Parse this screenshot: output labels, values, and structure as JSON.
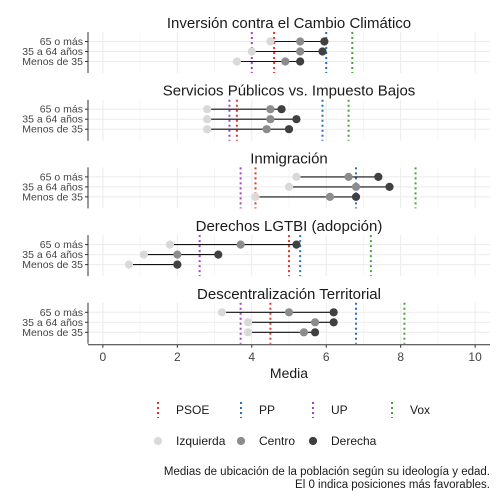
{
  "chart_data": {
    "type": "dot-range",
    "xlabel": "Media",
    "xlim": [
      -0.4,
      10.4
    ],
    "xticks": [
      0,
      2,
      4,
      6,
      8,
      10
    ],
    "grid": true,
    "groups": [
      "65 o más",
      "35 a 64 años",
      "Menos de 35"
    ],
    "ideologies": [
      {
        "name": "Izquierda",
        "color": "#d9d9d9"
      },
      {
        "name": "Centro",
        "color": "#8c8c8c"
      },
      {
        "name": "Derecha",
        "color": "#404040"
      }
    ],
    "parties": [
      {
        "name": "PSOE",
        "color": "#e8352a"
      },
      {
        "name": "PP",
        "color": "#2c6fbd"
      },
      {
        "name": "UP",
        "color": "#a344c9"
      },
      {
        "name": "Vox",
        "color": "#4aa539"
      }
    ],
    "panels": [
      {
        "title": "Inversión contra el Cambio Climático",
        "party_lines": {
          "PSOE": 4.6,
          "PP": 6.0,
          "UP": 4.0,
          "Vox": 6.7
        },
        "rows": [
          {
            "group": "65 o más",
            "Izquierda": 4.5,
            "Centro": 5.3,
            "Derecha": 5.95
          },
          {
            "group": "35 a 64 años",
            "Izquierda": 4.0,
            "Centro": 5.3,
            "Derecha": 5.9
          },
          {
            "group": "Menos de 35",
            "Izquierda": 3.6,
            "Centro": 4.9,
            "Derecha": 5.3
          }
        ]
      },
      {
        "title": "Servicios Públicos vs. Impuesto Bajos",
        "party_lines": {
          "PSOE": 3.6,
          "PP": 5.9,
          "UP": 3.4,
          "Vox": 6.6
        },
        "rows": [
          {
            "group": "65 o más",
            "Izquierda": 2.8,
            "Centro": 4.5,
            "Derecha": 4.8
          },
          {
            "group": "35 a 64 años",
            "Izquierda": 2.8,
            "Centro": 4.5,
            "Derecha": 5.2
          },
          {
            "group": "Menos de 35",
            "Izquierda": 2.8,
            "Centro": 4.4,
            "Derecha": 5.0
          }
        ]
      },
      {
        "title": "Inmigración",
        "party_lines": {
          "PSOE": 4.1,
          "PP": 6.8,
          "UP": 3.7,
          "Vox": 8.4
        },
        "rows": [
          {
            "group": "65 o más",
            "Izquierda": 5.2,
            "Centro": 6.6,
            "Derecha": 7.4
          },
          {
            "group": "35 a 64 años",
            "Izquierda": 5.0,
            "Centro": 6.8,
            "Derecha": 7.7
          },
          {
            "group": "Menos de 35",
            "Izquierda": 4.1,
            "Centro": 6.1,
            "Derecha": 6.8
          }
        ]
      },
      {
        "title": "Derechos LGTBI (adopción)",
        "party_lines": {
          "PSOE": 5.0,
          "PP": 5.3,
          "UP": 2.6,
          "Vox": 7.2
        },
        "rows": [
          {
            "group": "65 o más",
            "Izquierda": 1.8,
            "Centro": 3.7,
            "Derecha": 5.2
          },
          {
            "group": "35 a 64 años",
            "Izquierda": 1.1,
            "Centro": 2.0,
            "Derecha": 3.1
          },
          {
            "group": "Menos de 35",
            "Izquierda": 0.7,
            "Centro": 2.0,
            "Derecha": 2.0
          }
        ]
      },
      {
        "title": "Descentralización Territorial",
        "party_lines": {
          "PSOE": 4.5,
          "PP": 6.8,
          "UP": 3.7,
          "Vox": 8.1
        },
        "rows": [
          {
            "group": "65 o más",
            "Izquierda": 3.2,
            "Centro": 5.0,
            "Derecha": 6.2
          },
          {
            "group": "35 a 64 años",
            "Izquierda": 3.9,
            "Centro": 5.7,
            "Derecha": 6.2
          },
          {
            "group": "Menos de 35",
            "Izquierda": 3.9,
            "Centro": 5.4,
            "Derecha": 5.7
          }
        ]
      }
    ],
    "caption": [
      "Medias de ubicación de la población según su ideología y edad.",
      "El 0 indica posiciones más favorables."
    ]
  }
}
